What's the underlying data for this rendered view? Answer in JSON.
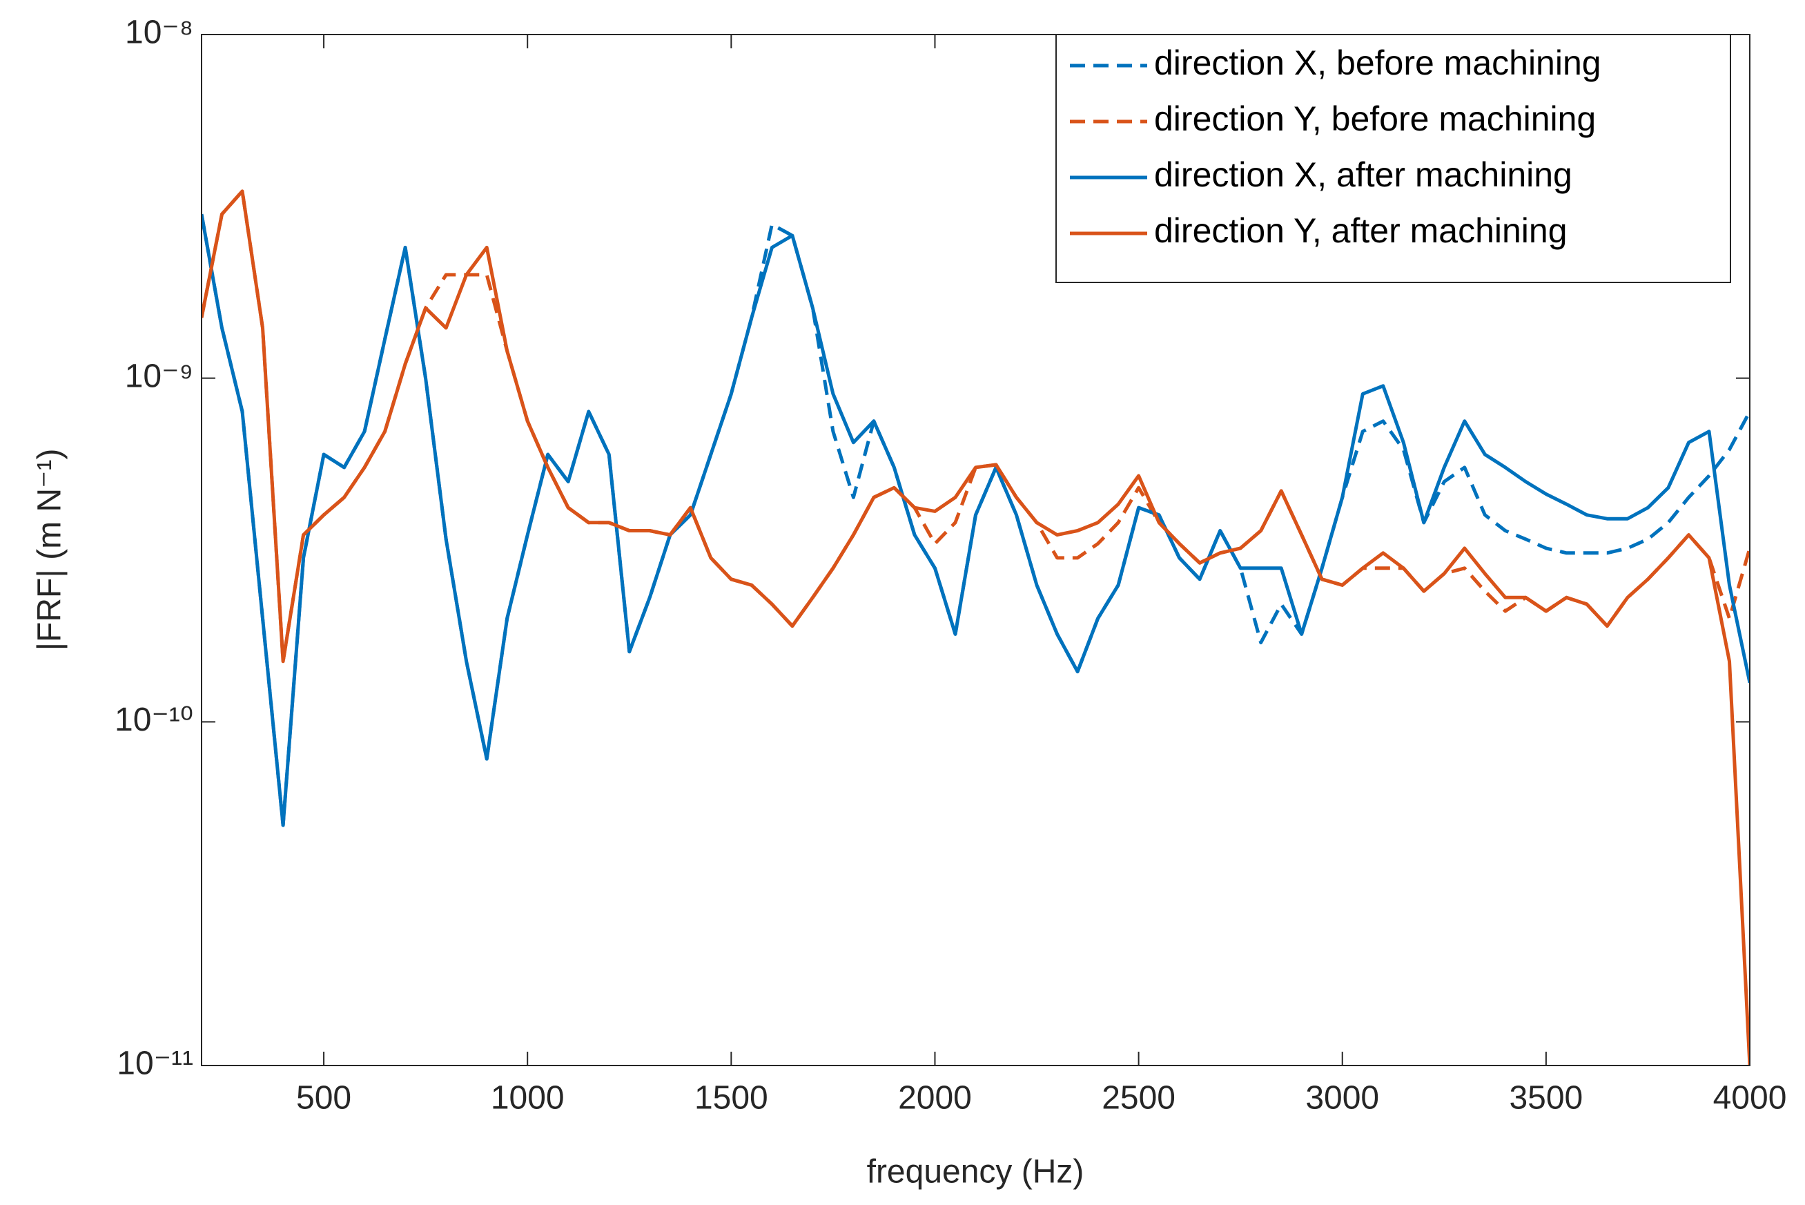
{
  "chart_data": {
    "type": "line",
    "xlabel": "frequency (Hz)",
    "ylabel": "|FRF| (m N⁻¹)",
    "log_y": true,
    "legend": "top-right",
    "xlim": [
      200,
      4000
    ],
    "xticks": [
      500,
      1000,
      1500,
      2000,
      2500,
      3000,
      3500,
      4000
    ],
    "ylim": [
      1e-11,
      1e-08
    ],
    "yticks": [
      {
        "value": 1e-11,
        "label": "10⁻¹¹"
      },
      {
        "value": 1e-10,
        "label": "10⁻¹⁰"
      },
      {
        "value": 1e-09,
        "label": "10⁻⁹"
      },
      {
        "value": 1e-08,
        "label": "10⁻⁸"
      }
    ],
    "x": [
      200,
      250,
      300,
      350,
      400,
      450,
      500,
      550,
      600,
      650,
      700,
      750,
      800,
      850,
      900,
      950,
      1000,
      1050,
      1100,
      1150,
      1200,
      1250,
      1300,
      1350,
      1400,
      1450,
      1500,
      1550,
      1600,
      1650,
      1700,
      1750,
      1800,
      1850,
      1900,
      1950,
      2000,
      2050,
      2100,
      2150,
      2200,
      2250,
      2300,
      2350,
      2400,
      2450,
      2500,
      2550,
      2600,
      2650,
      2700,
      2750,
      2800,
      2850,
      2900,
      2950,
      3000,
      3050,
      3100,
      3150,
      3200,
      3250,
      3300,
      3350,
      3400,
      3450,
      3500,
      3550,
      3600,
      3650,
      3700,
      3750,
      3800,
      3850,
      3900,
      3950,
      4000
    ],
    "series": [
      {
        "name": "direction X, before machining",
        "color": "#0072BD",
        "linestyle": "dashed",
        "values": [
          3e-09,
          1.4e-09,
          8e-10,
          2e-10,
          5e-11,
          3e-10,
          6e-10,
          5.5e-10,
          7e-10,
          1.3e-09,
          2.4e-09,
          1e-09,
          3.4e-10,
          1.5e-10,
          7.8e-11,
          2e-10,
          3.5e-10,
          6e-10,
          5e-10,
          8e-10,
          6e-10,
          1.6e-10,
          2.3e-10,
          3.5e-10,
          4e-10,
          6e-10,
          9e-10,
          1.5e-09,
          2.8e-09,
          2.6e-09,
          1.6e-09,
          7e-10,
          4.5e-10,
          7.5e-10,
          5.5e-10,
          3.5e-10,
          2.8e-10,
          1.8e-10,
          4e-10,
          5.5e-10,
          4e-10,
          2.5e-10,
          1.8e-10,
          1.4e-10,
          2e-10,
          2.5e-10,
          4.2e-10,
          4e-10,
          3e-10,
          2.6e-10,
          3.6e-10,
          2.8e-10,
          1.7e-10,
          2.2e-10,
          1.8e-10,
          2.8e-10,
          4.5e-10,
          7e-10,
          7.5e-10,
          6.2e-10,
          3.8e-10,
          5e-10,
          5.5e-10,
          4e-10,
          3.6e-10,
          3.4e-10,
          3.2e-10,
          3.1e-10,
          3.1e-10,
          3.1e-10,
          3.2e-10,
          3.4e-10,
          3.8e-10,
          4.5e-10,
          5.2e-10,
          6.2e-10,
          8e-10
        ]
      },
      {
        "name": "direction Y, before machining",
        "color": "#D95319",
        "linestyle": "dashed",
        "values": [
          1.5e-09,
          3e-09,
          3.5e-09,
          1.4e-09,
          1.5e-10,
          3.5e-10,
          4e-10,
          4.5e-10,
          5.5e-10,
          7e-10,
          1.1e-09,
          1.6e-09,
          2e-09,
          2e-09,
          2e-09,
          1.2e-09,
          7.5e-10,
          5.5e-10,
          4.2e-10,
          3.8e-10,
          3.8e-10,
          3.6e-10,
          3.6e-10,
          3.5e-10,
          4.2e-10,
          3e-10,
          2.6e-10,
          2.5e-10,
          2.2e-10,
          1.9e-10,
          2.3e-10,
          2.8e-10,
          3.5e-10,
          4.5e-10,
          4.8e-10,
          4.2e-10,
          3.3e-10,
          3.8e-10,
          5.5e-10,
          5.6e-10,
          4.5e-10,
          3.8e-10,
          3e-10,
          3e-10,
          3.3e-10,
          3.8e-10,
          4.8e-10,
          3.8e-10,
          3.3e-10,
          2.9e-10,
          3.1e-10,
          3.2e-10,
          3.6e-10,
          4.7e-10,
          3.5e-10,
          2.6e-10,
          2.5e-10,
          2.8e-10,
          2.8e-10,
          2.8e-10,
          2.4e-10,
          2.7e-10,
          2.8e-10,
          2.4e-10,
          2.1e-10,
          2.3e-10,
          2.1e-10,
          2.3e-10,
          2.2e-10,
          1.9e-10,
          2.3e-10,
          2.6e-10,
          3e-10,
          3.5e-10,
          3e-10,
          2e-10,
          3.2e-10
        ]
      },
      {
        "name": "direction X, after machining",
        "color": "#0072BD",
        "linestyle": "solid",
        "values": [
          3e-09,
          1.4e-09,
          8e-10,
          2e-10,
          5e-11,
          3e-10,
          6e-10,
          5.5e-10,
          7e-10,
          1.3e-09,
          2.4e-09,
          1e-09,
          3.4e-10,
          1.5e-10,
          7.8e-11,
          2e-10,
          3.5e-10,
          6e-10,
          5e-10,
          8e-10,
          6e-10,
          1.6e-10,
          2.3e-10,
          3.5e-10,
          4e-10,
          6e-10,
          9e-10,
          1.5e-09,
          2.4e-09,
          2.6e-09,
          1.6e-09,
          9e-10,
          6.5e-10,
          7.5e-10,
          5.5e-10,
          3.5e-10,
          2.8e-10,
          1.8e-10,
          4e-10,
          5.5e-10,
          4e-10,
          2.5e-10,
          1.8e-10,
          1.4e-10,
          2e-10,
          2.5e-10,
          4.2e-10,
          4e-10,
          3e-10,
          2.6e-10,
          3.6e-10,
          2.8e-10,
          2.8e-10,
          2.8e-10,
          1.8e-10,
          2.8e-10,
          4.5e-10,
          9e-10,
          9.5e-10,
          6.5e-10,
          3.8e-10,
          5.5e-10,
          7.5e-10,
          6e-10,
          5.5e-10,
          5e-10,
          4.6e-10,
          4.3e-10,
          4e-10,
          3.9e-10,
          3.9e-10,
          4.2e-10,
          4.8e-10,
          6.5e-10,
          7e-10,
          2.5e-10,
          1.3e-10
        ]
      },
      {
        "name": "direction Y, after machining",
        "color": "#D95319",
        "linestyle": "solid",
        "values": [
          1.5e-09,
          3e-09,
          3.5e-09,
          1.4e-09,
          1.5e-10,
          3.5e-10,
          4e-10,
          4.5e-10,
          5.5e-10,
          7e-10,
          1.1e-09,
          1.6e-09,
          1.4e-09,
          2e-09,
          2.4e-09,
          1.2e-09,
          7.5e-10,
          5.5e-10,
          4.2e-10,
          3.8e-10,
          3.8e-10,
          3.6e-10,
          3.6e-10,
          3.5e-10,
          4.2e-10,
          3e-10,
          2.6e-10,
          2.5e-10,
          2.2e-10,
          1.9e-10,
          2.3e-10,
          2.8e-10,
          3.5e-10,
          4.5e-10,
          4.8e-10,
          4.2e-10,
          4.1e-10,
          4.5e-10,
          5.5e-10,
          5.6e-10,
          4.5e-10,
          3.8e-10,
          3.5e-10,
          3.6e-10,
          3.8e-10,
          4.3e-10,
          5.2e-10,
          3.8e-10,
          3.3e-10,
          2.9e-10,
          3.1e-10,
          3.2e-10,
          3.6e-10,
          4.7e-10,
          3.5e-10,
          2.6e-10,
          2.5e-10,
          2.8e-10,
          3.1e-10,
          2.8e-10,
          2.4e-10,
          2.7e-10,
          3.2e-10,
          2.7e-10,
          2.3e-10,
          2.3e-10,
          2.1e-10,
          2.3e-10,
          2.2e-10,
          1.9e-10,
          2.3e-10,
          2.6e-10,
          3e-10,
          3.5e-10,
          3e-10,
          1.5e-10,
          1e-11
        ]
      }
    ]
  }
}
